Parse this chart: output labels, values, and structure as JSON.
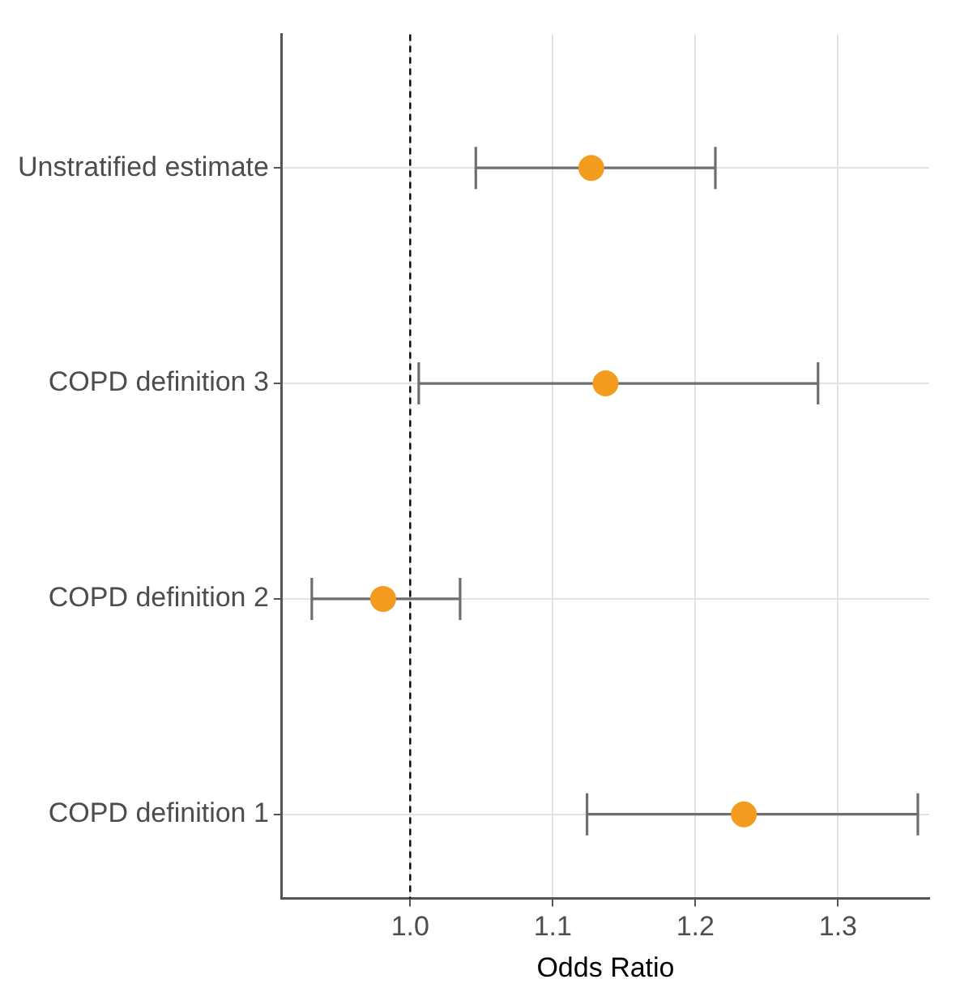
{
  "chart_data": {
    "type": "scatter",
    "orientation": "horizontal",
    "xlabel": "Odds Ratio",
    "categories": [
      "Unstratified estimate",
      "COPD definition 3",
      "COPD definition 2",
      "COPD definition 1"
    ],
    "values": [
      1.127,
      1.137,
      0.981,
      1.234
    ],
    "errors": [
      [
        1.046,
        1.214
      ],
      [
        1.006,
        1.286
      ],
      [
        0.931,
        1.035
      ],
      [
        1.124,
        1.356
      ]
    ],
    "color": "#f39c1f",
    "xlim": [
      0.91,
      1.364
    ],
    "xticks": [
      {
        "value": 1.0,
        "label": "1.0"
      },
      1.1,
      1.2,
      1.3
    ],
    "ref_lines": [
      {
        "axis": "x",
        "value": 1.0,
        "line_style": "dashed",
        "color": "#000000"
      }
    ],
    "grid": true,
    "legend": false,
    "marker": "circle"
  }
}
